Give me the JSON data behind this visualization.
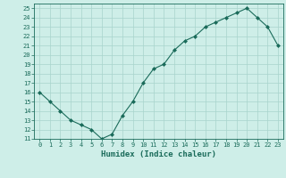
{
  "x": [
    0,
    1,
    2,
    3,
    4,
    5,
    6,
    7,
    8,
    9,
    10,
    11,
    12,
    13,
    14,
    15,
    16,
    17,
    18,
    19,
    20,
    21,
    22,
    23
  ],
  "y": [
    16,
    15,
    14,
    13,
    12.5,
    12,
    11,
    11.5,
    13.5,
    15,
    17,
    18.5,
    19,
    20.5,
    21.5,
    22,
    23,
    23.5,
    24,
    24.5,
    25,
    24,
    23,
    21
  ],
  "line_color": "#1a6b5a",
  "marker": "D",
  "marker_size": 2,
  "bg_color": "#ceeee8",
  "grid_color": "#a8d4cc",
  "xlabel": "Humidex (Indice chaleur)",
  "ylim": [
    11,
    25.5
  ],
  "yticks": [
    11,
    12,
    13,
    14,
    15,
    16,
    17,
    18,
    19,
    20,
    21,
    22,
    23,
    24,
    25
  ],
  "xticks": [
    0,
    1,
    2,
    3,
    4,
    5,
    6,
    7,
    8,
    9,
    10,
    11,
    12,
    13,
    14,
    15,
    16,
    17,
    18,
    19,
    20,
    21,
    22,
    23
  ],
  "tick_fontsize": 5.0,
  "xlabel_fontsize": 6.5,
  "label_color": "#1a6b5a",
  "line_width": 0.8
}
